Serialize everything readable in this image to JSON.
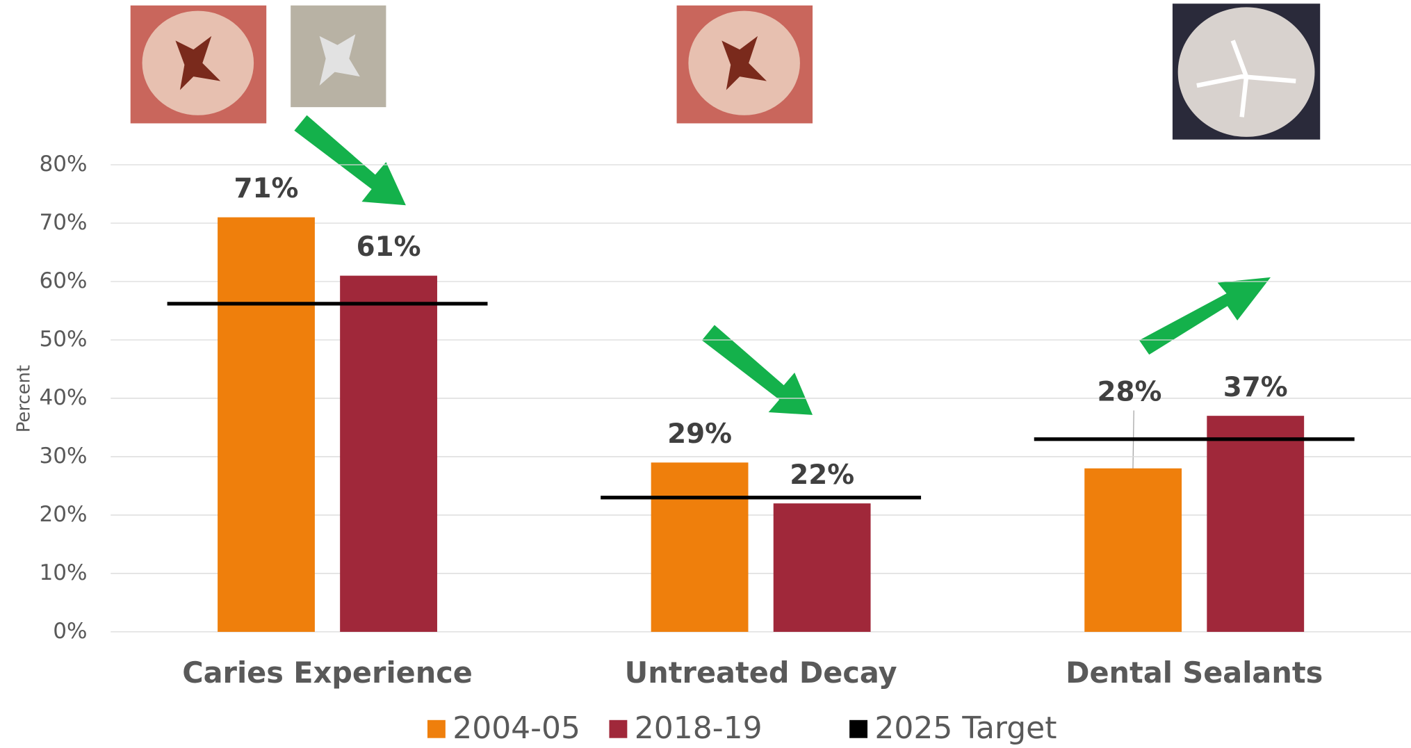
{
  "chart_data": {
    "type": "bar",
    "categories": [
      "Caries Experience",
      "Untreated Decay",
      "Dental Sealants"
    ],
    "series": [
      {
        "name": "2004-05",
        "color": "#ef7f0c",
        "values": [
          71,
          29,
          28
        ],
        "value_labels": [
          "71%",
          "29%",
          "28%"
        ]
      },
      {
        "name": "2018-19",
        "color": "#a0283a",
        "values": [
          61,
          22,
          37
        ],
        "value_labels": [
          "61%",
          "22%",
          "37%"
        ]
      },
      {
        "name": "2025 Target",
        "color": "#000000",
        "values": [
          56.2,
          23,
          33
        ]
      }
    ],
    "y_label": "Percent",
    "ylim": [
      0,
      80
    ],
    "yticks": [
      {
        "value": 0,
        "label": "0%"
      },
      {
        "value": 10,
        "label": "10%"
      },
      {
        "value": 20,
        "label": "20%"
      },
      {
        "value": 30,
        "label": "30%"
      },
      {
        "value": 40,
        "label": "40%"
      },
      {
        "value": 50,
        "label": "50%"
      },
      {
        "value": 60,
        "label": "60%"
      },
      {
        "value": 70,
        "label": "70%"
      },
      {
        "value": 80,
        "label": "80%"
      }
    ],
    "grid": true
  }
}
